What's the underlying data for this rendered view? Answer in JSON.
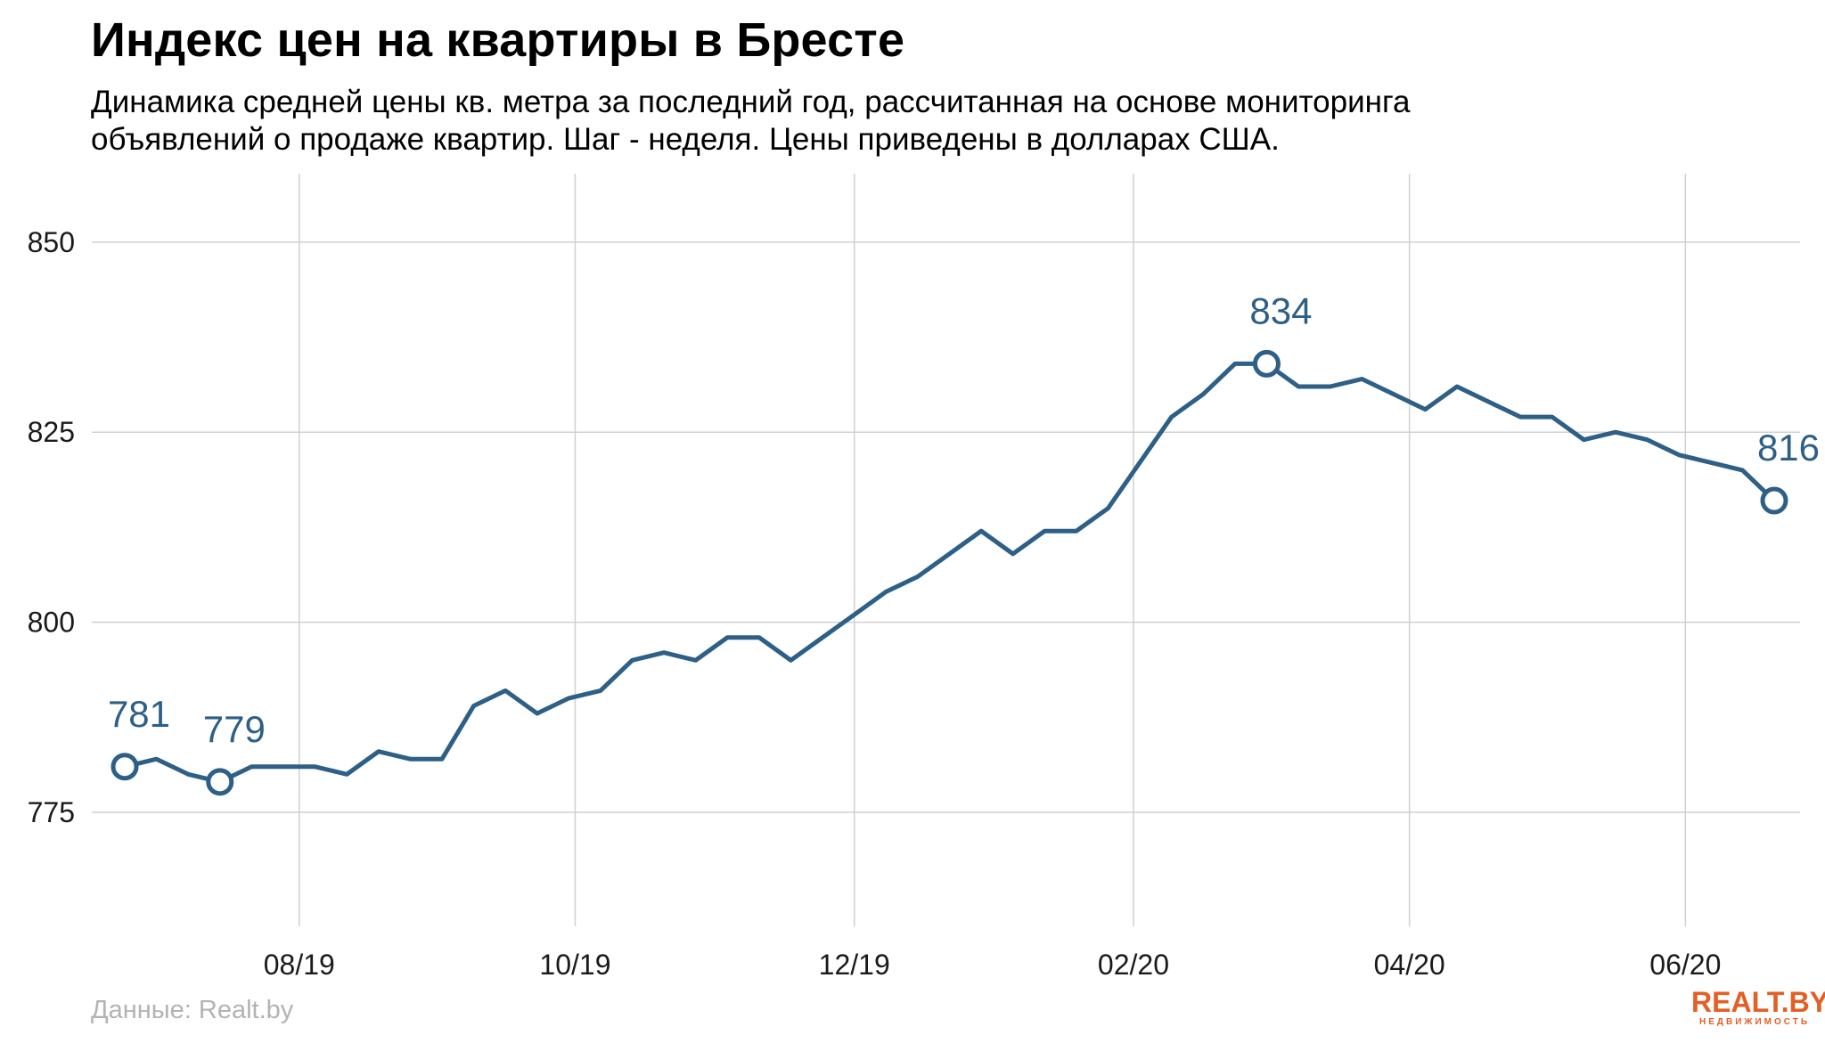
{
  "header": {
    "title": "Индекс цен на квартиры в Бресте",
    "subtitle_line1": "Динамика средней цены кв. метра за последний год, рассчитанная на основе мониторинга",
    "subtitle_line2": "объявлений о продаже квартир. Шаг - неделя. Цены приведены в долларах США."
  },
  "footer": {
    "source": "Данные: Realt.by",
    "logo_main": "REALT.BY",
    "logo_sub": "НЕДВИЖИМОСТЬ"
  },
  "colors": {
    "line": "#2d5f87",
    "grid": "#d0d0d0",
    "axis_text": "#1a1a1a"
  },
  "chart_data": {
    "type": "line",
    "title": "Индекс цен на квартиры в Бресте",
    "xlabel": "",
    "ylabel": "",
    "ylim": [
      760,
      859
    ],
    "y_ticks": [
      775,
      800,
      825,
      850
    ],
    "x_ticks": [
      {
        "label": "08/19",
        "week": 5.5
      },
      {
        "label": "10/19",
        "week": 14.2
      },
      {
        "label": "12/19",
        "week": 23.0
      },
      {
        "label": "02/20",
        "week": 31.8
      },
      {
        "label": "04/20",
        "week": 40.5
      },
      {
        "label": "06/20",
        "week": 49.2
      }
    ],
    "grid": true,
    "series": [
      {
        "values": [
          781,
          782,
          780,
          779,
          781,
          781,
          781,
          780,
          783,
          782,
          782,
          789,
          791,
          788,
          790,
          791,
          795,
          796,
          795,
          798,
          798,
          795,
          798,
          801,
          804,
          806,
          809,
          812,
          809,
          812,
          812,
          815,
          821,
          827,
          830,
          834,
          834,
          831,
          831,
          832,
          830,
          828,
          831,
          829,
          827,
          827,
          824,
          825,
          824,
          822,
          821,
          820,
          816
        ]
      }
    ],
    "annotations": [
      {
        "index": 0,
        "label": "781"
      },
      {
        "index": 3,
        "label": "779"
      },
      {
        "index": 36,
        "label": "834"
      },
      {
        "index": 52,
        "label": "816"
      }
    ]
  }
}
